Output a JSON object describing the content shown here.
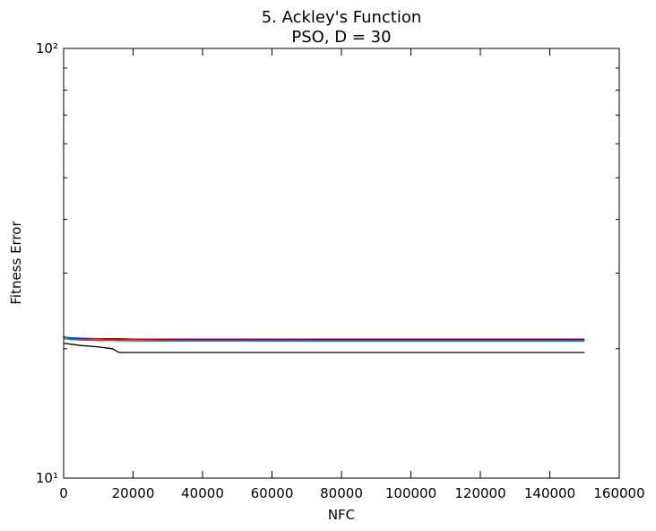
{
  "chart_data": {
    "type": "line",
    "title": "5.   Ackley's Function",
    "subtitle": "PSO, D = 30",
    "x_label": "NFC",
    "y_label": "Fitness Error",
    "y_scale": "log",
    "xlim": [
      0,
      160000
    ],
    "xticks": [
      0,
      20000,
      40000,
      60000,
      80000,
      100000,
      120000,
      140000,
      160000
    ],
    "ylim": [
      10,
      100
    ],
    "yticks": [
      {
        "value": 10,
        "label": "10¹"
      },
      {
        "value": 100,
        "label": "10²"
      }
    ],
    "yminorticks": [
      20,
      30,
      40,
      50,
      60,
      70,
      80,
      90
    ],
    "x": [
      0,
      2000,
      5000,
      10000,
      14000,
      16000,
      20000,
      35000,
      50000,
      75000,
      100000,
      150000
    ],
    "series": [
      {
        "color": "#0000ff",
        "values": [
          21.3,
          21.2,
          21.15,
          21.1,
          21.1,
          21.1,
          21.05,
          21.05,
          21.05,
          21.05,
          21.05,
          21.05
        ]
      },
      {
        "color": "#ff0000",
        "values": [
          21.2,
          21.1,
          21.05,
          21.05,
          21.0,
          21.0,
          21.0,
          20.95,
          20.95,
          20.95,
          20.95,
          20.95
        ]
      },
      {
        "color": "#00bfbf",
        "values": [
          21.1,
          21.0,
          20.95,
          20.9,
          20.9,
          20.85,
          20.85,
          20.85,
          20.85,
          20.8,
          20.8,
          20.8
        ]
      },
      {
        "color": "#2e8b57",
        "values": [
          21.4,
          21.0,
          20.95,
          20.9,
          20.9,
          20.9,
          20.85,
          20.85,
          20.85,
          20.85,
          20.85,
          20.85
        ]
      },
      {
        "color": "#000000",
        "values": [
          20.6,
          20.5,
          20.35,
          20.2,
          20.0,
          19.6,
          19.6,
          19.6,
          19.6,
          19.6,
          19.6,
          19.6
        ]
      }
    ]
  }
}
